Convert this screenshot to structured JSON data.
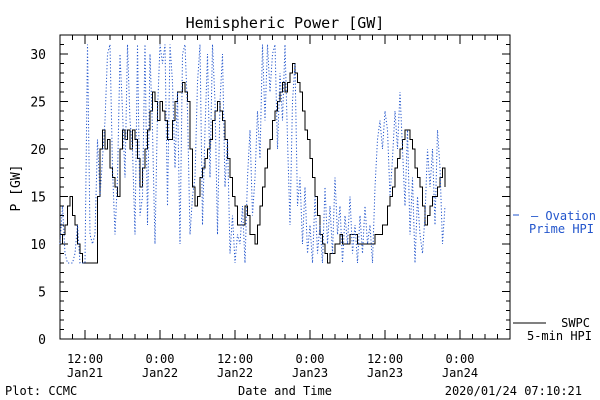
{
  "chart_data": {
    "type": "line",
    "title": "Hemispheric Power [GW]",
    "ylabel": "P [GW]",
    "xlabel": "Date and Time",
    "ylim": [
      0,
      32
    ],
    "yticks": [
      0,
      5,
      10,
      15,
      20,
      25,
      30
    ],
    "xlim_hours": [
      -16,
      56
    ],
    "xticks": [
      {
        "hour": -12,
        "line1": "12:00",
        "line2": "Jan21"
      },
      {
        "hour": 0,
        "line1": "0:00",
        "line2": "Jan22"
      },
      {
        "hour": 12,
        "line1": "12:00",
        "line2": "Jan22"
      },
      {
        "hour": 24,
        "line1": "0:00",
        "line2": "Jan23"
      },
      {
        "hour": 36,
        "line1": "12:00",
        "line2": "Jan23"
      },
      {
        "hour": 48,
        "line1": "0:00",
        "line2": "Jan24"
      }
    ],
    "grid": false,
    "series": [
      {
        "name": "SWPC 5-min HPI",
        "color": "#000000",
        "style": "step",
        "points": [
          [
            -16,
            10
          ],
          [
            -15.6,
            11
          ],
          [
            -15.2,
            12
          ],
          [
            -14.8,
            14
          ],
          [
            -14.4,
            15
          ],
          [
            -14,
            13
          ],
          [
            -13.6,
            12
          ],
          [
            -13.2,
            10
          ],
          [
            -12.8,
            9
          ],
          [
            -12.4,
            8
          ],
          [
            -12,
            8
          ],
          [
            -11.6,
            8
          ],
          [
            -11.2,
            8
          ],
          [
            -10.8,
            8
          ],
          [
            -10.4,
            8
          ],
          [
            -10,
            15
          ],
          [
            -9.6,
            20
          ],
          [
            -9.2,
            22
          ],
          [
            -8.8,
            20
          ],
          [
            -8.4,
            21
          ],
          [
            -8,
            18
          ],
          [
            -7.6,
            17
          ],
          [
            -7.2,
            16
          ],
          [
            -6.8,
            15
          ],
          [
            -6.4,
            20
          ],
          [
            -6,
            22
          ],
          [
            -5.6,
            21
          ],
          [
            -5.2,
            22
          ],
          [
            -4.8,
            20
          ],
          [
            -4.4,
            22
          ],
          [
            -4,
            21
          ],
          [
            -3.6,
            19
          ],
          [
            -3.2,
            16
          ],
          [
            -2.8,
            18
          ],
          [
            -2.4,
            20
          ],
          [
            -2,
            22
          ],
          [
            -1.6,
            24
          ],
          [
            -1.2,
            26
          ],
          [
            -0.8,
            25
          ],
          [
            -0.4,
            23
          ],
          [
            0,
            25
          ],
          [
            0.4,
            24
          ],
          [
            0.8,
            23
          ],
          [
            1.2,
            21
          ],
          [
            1.6,
            21
          ],
          [
            2,
            23
          ],
          [
            2.4,
            25
          ],
          [
            2.8,
            26
          ],
          [
            3.2,
            26
          ],
          [
            3.6,
            27
          ],
          [
            4,
            26
          ],
          [
            4.4,
            25
          ],
          [
            4.8,
            20
          ],
          [
            5.2,
            16
          ],
          [
            5.6,
            14
          ],
          [
            6,
            15
          ],
          [
            6.4,
            17
          ],
          [
            6.8,
            18
          ],
          [
            7.2,
            19
          ],
          [
            7.6,
            20
          ],
          [
            8,
            21
          ],
          [
            8.4,
            23
          ],
          [
            8.8,
            24
          ],
          [
            9.2,
            25
          ],
          [
            9.6,
            24
          ],
          [
            10,
            23
          ],
          [
            10.4,
            21
          ],
          [
            10.8,
            19
          ],
          [
            11.2,
            17
          ],
          [
            11.6,
            15
          ],
          [
            12,
            14
          ],
          [
            12.4,
            12
          ],
          [
            12.8,
            12
          ],
          [
            13.2,
            12
          ],
          [
            13.6,
            14
          ],
          [
            14,
            13
          ],
          [
            14.4,
            11
          ],
          [
            14.8,
            11
          ],
          [
            15.2,
            10
          ],
          [
            15.6,
            12
          ],
          [
            16,
            14
          ],
          [
            16.4,
            16
          ],
          [
            16.8,
            18
          ],
          [
            17.2,
            20
          ],
          [
            17.6,
            21
          ],
          [
            18,
            23
          ],
          [
            18.4,
            24
          ],
          [
            18.8,
            25
          ],
          [
            19.2,
            26
          ],
          [
            19.6,
            27
          ],
          [
            20,
            26
          ],
          [
            20.4,
            27
          ],
          [
            20.8,
            28
          ],
          [
            21.2,
            29
          ],
          [
            21.6,
            28
          ],
          [
            22,
            27
          ],
          [
            22.4,
            26
          ],
          [
            22.8,
            24
          ],
          [
            23.2,
            22
          ],
          [
            23.6,
            21
          ],
          [
            24,
            19
          ],
          [
            24.4,
            17
          ],
          [
            24.8,
            15
          ],
          [
            25.2,
            13
          ],
          [
            25.6,
            11
          ],
          [
            26,
            10
          ],
          [
            26.4,
            9
          ],
          [
            26.8,
            8
          ],
          [
            27.2,
            9
          ],
          [
            27.6,
            9
          ],
          [
            28,
            10
          ],
          [
            28.4,
            10
          ],
          [
            28.8,
            11
          ],
          [
            29.2,
            10
          ],
          [
            29.6,
            10
          ],
          [
            30,
            10
          ],
          [
            30.4,
            11
          ],
          [
            30.8,
            11
          ],
          [
            31.2,
            11
          ],
          [
            31.6,
            10
          ],
          [
            32,
            10
          ],
          [
            32.4,
            10
          ],
          [
            32.8,
            10
          ],
          [
            33.2,
            10
          ],
          [
            33.6,
            10
          ],
          [
            34,
            10
          ],
          [
            34.4,
            11
          ],
          [
            34.8,
            11
          ],
          [
            35.2,
            11
          ],
          [
            35.6,
            12
          ],
          [
            36,
            12
          ],
          [
            36.4,
            14
          ],
          [
            36.8,
            15
          ],
          [
            37.2,
            16
          ],
          [
            37.6,
            18
          ],
          [
            38,
            19
          ],
          [
            38.4,
            20
          ],
          [
            38.8,
            21
          ],
          [
            39.2,
            22
          ],
          [
            39.6,
            22
          ],
          [
            40,
            21
          ],
          [
            40.4,
            20
          ],
          [
            40.8,
            18
          ],
          [
            41.2,
            17
          ],
          [
            41.6,
            16
          ],
          [
            42,
            14
          ],
          [
            42.4,
            12
          ],
          [
            42.8,
            13
          ],
          [
            43.2,
            14
          ],
          [
            43.6,
            15
          ],
          [
            44,
            15
          ],
          [
            44.4,
            16
          ],
          [
            44.8,
            17
          ],
          [
            45.2,
            18
          ],
          [
            45.6,
            16
          ]
        ]
      },
      {
        "name": "Ovation Prime HPI",
        "color": "#2255cc",
        "style": "dotted",
        "points": [
          [
            -16,
            10
          ],
          [
            -15.6,
            14
          ],
          [
            -15.2,
            9
          ],
          [
            -14.8,
            8
          ],
          [
            -14.4,
            8
          ],
          [
            -14,
            8
          ],
          [
            -13.6,
            9
          ],
          [
            -13.2,
            12
          ],
          [
            -12.8,
            8
          ],
          [
            -12.4,
            8
          ],
          [
            -12,
            8
          ],
          [
            -11.6,
            31
          ],
          [
            -11.2,
            11
          ],
          [
            -10.8,
            10
          ],
          [
            -10.4,
            11
          ],
          [
            -10,
            21
          ],
          [
            -9.6,
            15
          ],
          [
            -9.2,
            19
          ],
          [
            -8.8,
            23
          ],
          [
            -8.4,
            30
          ],
          [
            -8,
            31
          ],
          [
            -7.6,
            18
          ],
          [
            -7.2,
            11
          ],
          [
            -6.8,
            17
          ],
          [
            -6.4,
            30
          ],
          [
            -6,
            24
          ],
          [
            -5.6,
            17
          ],
          [
            -5.2,
            31
          ],
          [
            -4.8,
            23
          ],
          [
            -4.4,
            20
          ],
          [
            -4,
            11
          ],
          [
            -3.6,
            31
          ],
          [
            -3.2,
            13
          ],
          [
            -2.8,
            15
          ],
          [
            -2.4,
            31
          ],
          [
            -2,
            12
          ],
          [
            -1.6,
            30
          ],
          [
            -1.2,
            22
          ],
          [
            -0.8,
            10
          ],
          [
            -0.4,
            24
          ],
          [
            0,
            31
          ],
          [
            0.4,
            29
          ],
          [
            0.8,
            31
          ],
          [
            1.2,
            14
          ],
          [
            1.6,
            31
          ],
          [
            2,
            27
          ],
          [
            2.4,
            18
          ],
          [
            2.8,
            26
          ],
          [
            3.2,
            10
          ],
          [
            3.6,
            30
          ],
          [
            4,
            31
          ],
          [
            4.4,
            24
          ],
          [
            4.8,
            11
          ],
          [
            5.2,
            15
          ],
          [
            5.6,
            17
          ],
          [
            6,
            27
          ],
          [
            6.4,
            31
          ],
          [
            6.8,
            12
          ],
          [
            7.2,
            22
          ],
          [
            7.6,
            30
          ],
          [
            8,
            17
          ],
          [
            8.4,
            31
          ],
          [
            8.8,
            25
          ],
          [
            9.2,
            11
          ],
          [
            9.6,
            25
          ],
          [
            10,
            30
          ],
          [
            10.4,
            16
          ],
          [
            10.8,
            21
          ],
          [
            11.2,
            9
          ],
          [
            11.6,
            13
          ],
          [
            12,
            8
          ],
          [
            12.4,
            11
          ],
          [
            12.8,
            10
          ],
          [
            13.2,
            14
          ],
          [
            13.6,
            8
          ],
          [
            14,
            17
          ],
          [
            14.4,
            22
          ],
          [
            14.8,
            13
          ],
          [
            15.2,
            17
          ],
          [
            15.6,
            24
          ],
          [
            16,
            19
          ],
          [
            16.4,
            31
          ],
          [
            16.8,
            23
          ],
          [
            17.2,
            31
          ],
          [
            17.6,
            26
          ],
          [
            18,
            30
          ],
          [
            18.4,
            31
          ],
          [
            18.8,
            20
          ],
          [
            19.2,
            28
          ],
          [
            19.6,
            23
          ],
          [
            20,
            31
          ],
          [
            20.4,
            21
          ],
          [
            20.8,
            12
          ],
          [
            21.2,
            25
          ],
          [
            21.6,
            29
          ],
          [
            22,
            14
          ],
          [
            22.4,
            17
          ],
          [
            22.8,
            10
          ],
          [
            23.2,
            16
          ],
          [
            23.6,
            9
          ],
          [
            24,
            12
          ],
          [
            24.4,
            8
          ],
          [
            24.8,
            15
          ],
          [
            25.2,
            9
          ],
          [
            25.6,
            12
          ],
          [
            26,
            8
          ],
          [
            26.4,
            16
          ],
          [
            26.8,
            10
          ],
          [
            27.2,
            14
          ],
          [
            27.6,
            9
          ],
          [
            28,
            17
          ],
          [
            28.4,
            11
          ],
          [
            28.8,
            14
          ],
          [
            29.2,
            8
          ],
          [
            29.6,
            13
          ],
          [
            30,
            10
          ],
          [
            30.4,
            15
          ],
          [
            30.8,
            9
          ],
          [
            31.2,
            12
          ],
          [
            31.6,
            8
          ],
          [
            32,
            13
          ],
          [
            32.4,
            9
          ],
          [
            32.8,
            14
          ],
          [
            33.2,
            10
          ],
          [
            33.6,
            12
          ],
          [
            34,
            8
          ],
          [
            34.4,
            16
          ],
          [
            34.8,
            21
          ],
          [
            35.2,
            23
          ],
          [
            35.6,
            20
          ],
          [
            36,
            24
          ],
          [
            36.4,
            22
          ],
          [
            36.8,
            15
          ],
          [
            37.2,
            19
          ],
          [
            37.6,
            24
          ],
          [
            38,
            20
          ],
          [
            38.4,
            26
          ],
          [
            38.8,
            20
          ],
          [
            39.2,
            14
          ],
          [
            39.6,
            22
          ],
          [
            40,
            11
          ],
          [
            40.4,
            17
          ],
          [
            40.8,
            8
          ],
          [
            41.2,
            15
          ],
          [
            41.6,
            11
          ],
          [
            42,
            9
          ],
          [
            42.4,
            13
          ],
          [
            42.8,
            20
          ],
          [
            43.2,
            16
          ],
          [
            43.6,
            20
          ],
          [
            44,
            12
          ],
          [
            44.4,
            22
          ],
          [
            44.8,
            18
          ],
          [
            45.2,
            10
          ],
          [
            45.6,
            14
          ]
        ]
      }
    ],
    "legend": [
      {
        "line1": "— Ovation",
        "line2": "Prime HPI",
        "color": "#2255cc"
      },
      {
        "line1": "SWPC",
        "line2": "5-min HPI",
        "color": "#000000"
      }
    ]
  },
  "footer": {
    "left": "Plot: CCMC",
    "center": "Date and Time",
    "right": "2020/01/24 07:10:21"
  }
}
